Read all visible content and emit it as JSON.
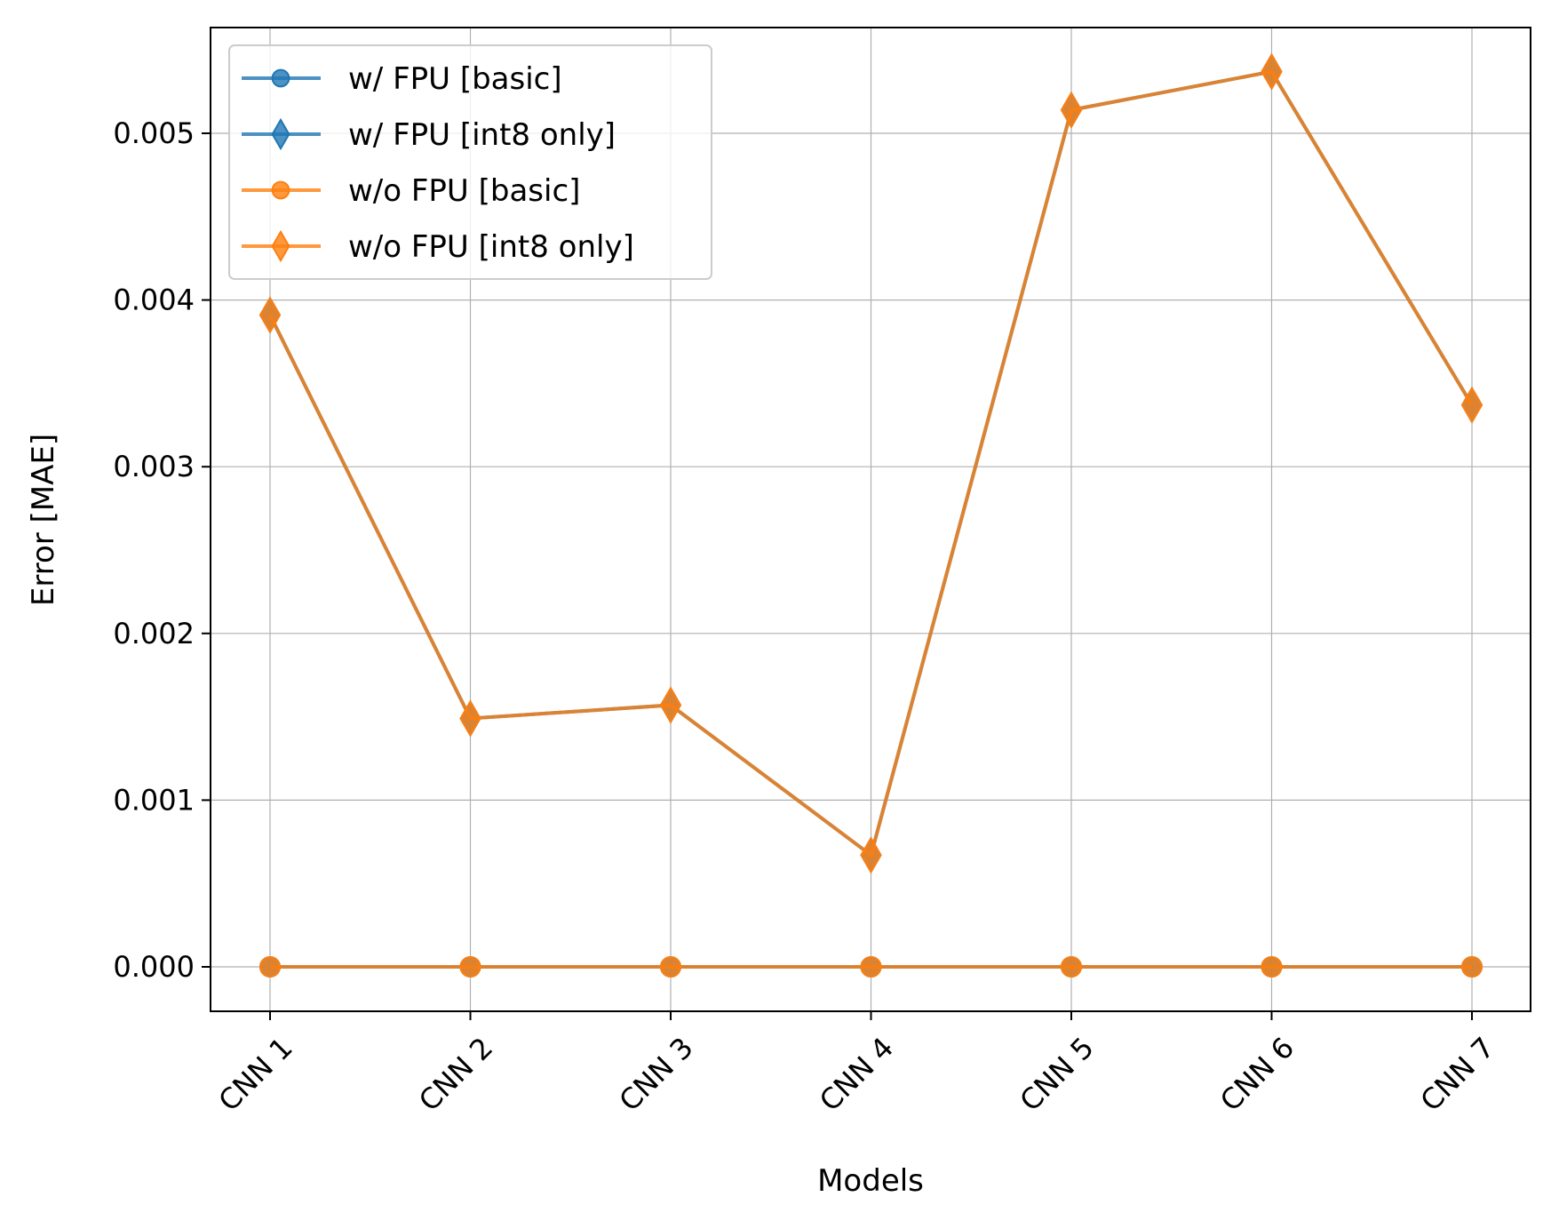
{
  "chart_data": {
    "type": "line",
    "title": "",
    "xlabel": "Models",
    "ylabel": "Error [MAE]",
    "categories": [
      "CNN 1",
      "CNN 2",
      "CNN 3",
      "CNN 4",
      "CNN 5",
      "CNN 6",
      "CNN 7"
    ],
    "ylim": [
      -0.00028,
      0.00565
    ],
    "yticks": [
      0.0,
      0.001,
      0.002,
      0.003,
      0.004,
      0.005
    ],
    "ytick_labels": [
      "0.000",
      "0.001",
      "0.002",
      "0.003",
      "0.004",
      "0.005"
    ],
    "grid": true,
    "legend_position": "top-left",
    "series": [
      {
        "name": "w/ FPU [basic]",
        "color": "#1f77b4",
        "marker": "circle",
        "values": [
          0,
          0,
          0,
          0,
          0,
          0,
          0
        ]
      },
      {
        "name": "w/ FPU [int8 only]",
        "color": "#1f77b4",
        "marker": "diamond",
        "values": [
          0.00391,
          0.00149,
          0.00157,
          0.00067,
          0.00514,
          0.00537,
          0.00337
        ]
      },
      {
        "name": "w/o FPU [basic]",
        "color": "#ff7f0e",
        "marker": "circle",
        "values": [
          0,
          0,
          0,
          0,
          0,
          0,
          0
        ]
      },
      {
        "name": "w/o FPU [int8 only]",
        "color": "#ff7f0e",
        "marker": "diamond",
        "values": [
          0.00391,
          0.00149,
          0.00157,
          0.00067,
          0.00514,
          0.00537,
          0.00337
        ]
      }
    ]
  }
}
